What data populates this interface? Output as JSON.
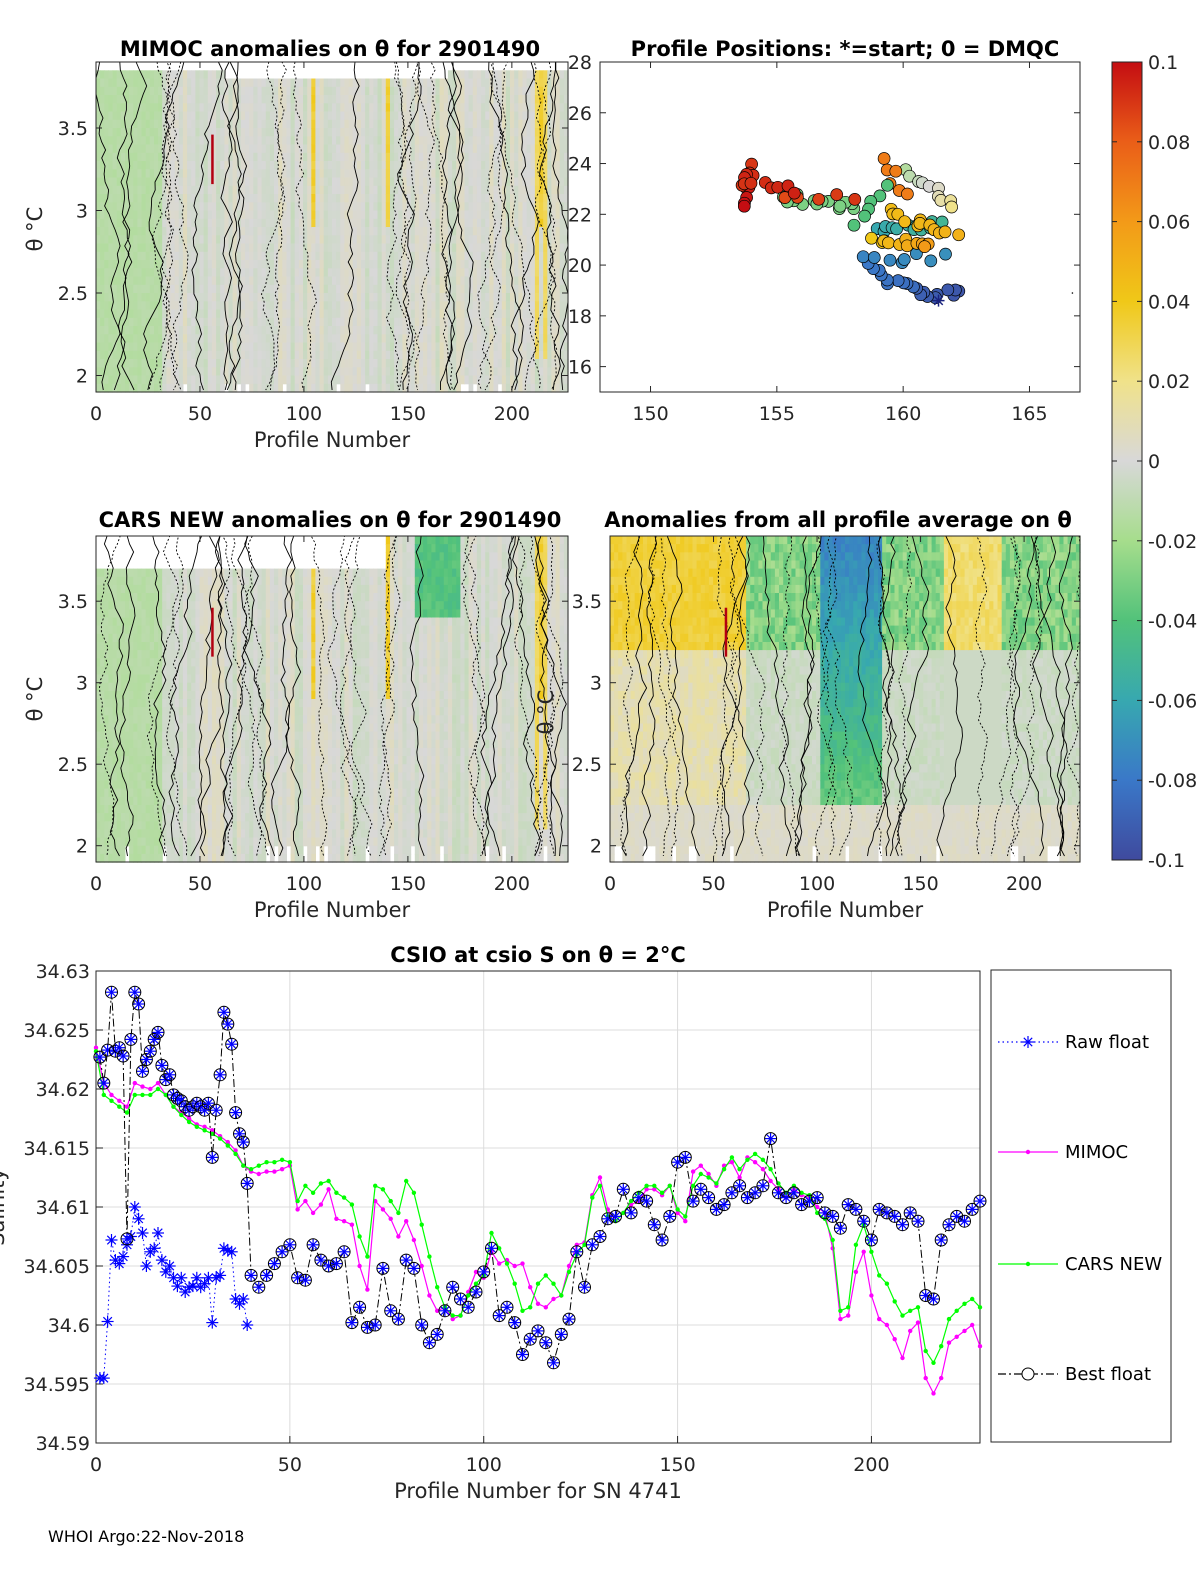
{
  "figure": {
    "footer": "WHOI Argo:22-Nov-2018"
  },
  "chart_data": [
    {
      "id": "mimoc",
      "type": "heatmap",
      "title": "MIMOC anomalies on θ  for 2901490",
      "xlabel": "Profile Number",
      "ylabel": "θ °C",
      "xlim": [
        0,
        227
      ],
      "ylim": [
        1.9,
        3.9
      ],
      "xticks": [
        0,
        50,
        100,
        150,
        200
      ],
      "yticks": [
        2,
        2.5,
        3,
        3.5
      ],
      "clim": [
        -0.1,
        0.1
      ],
      "contours": "black solid/dotted anomaly contours"
    },
    {
      "id": "positions",
      "type": "scatter",
      "title": "Profile Positions: *=start; 0 = DMQC",
      "xlim": [
        148,
        167
      ],
      "ylim": [
        15,
        28
      ],
      "xticks": [
        150,
        155,
        160,
        165
      ],
      "yticks": [
        16,
        18,
        20,
        22,
        24,
        26,
        28
      ],
      "start": [
        161.4,
        18.6
      ],
      "colormap_by": "mean anomaly"
    },
    {
      "id": "cars",
      "type": "heatmap",
      "title": "CARS NEW anomalies on θ for 2901490",
      "xlabel": "Profile Number",
      "ylabel": "θ °C",
      "xlim": [
        0,
        227
      ],
      "ylim": [
        1.9,
        3.9
      ],
      "xticks": [
        0,
        50,
        100,
        150,
        200
      ],
      "yticks": [
        2,
        2.5,
        3,
        3.5
      ],
      "clim": [
        -0.1,
        0.1
      ]
    },
    {
      "id": "allavg",
      "type": "heatmap",
      "title": "Anomalies from all profile average on θ",
      "xlabel": "Profile Number",
      "ylabel": "θ °C",
      "xlim": [
        0,
        227
      ],
      "ylim": [
        1.9,
        3.9
      ],
      "xticks": [
        0,
        50,
        100,
        150,
        200
      ],
      "yticks": [
        2,
        2.5,
        3,
        3.5
      ],
      "clim": [
        -0.1,
        0.1
      ]
    },
    {
      "id": "colorbar",
      "type": "colorbar",
      "range": [
        -0.1,
        0.1
      ],
      "ticks": [
        "0.1",
        "0.08",
        "0.06",
        "0.04",
        "0.02",
        "0",
        "-0.02",
        "-0.04",
        "-0.06",
        "-0.08",
        "-0.1"
      ],
      "colors": [
        "#3f4a9e",
        "#3a78c8",
        "#37a8b0",
        "#52c27a",
        "#a6dd8c",
        "#d8d8d8",
        "#f0e28a",
        "#f0c818",
        "#f39a18",
        "#ea5e18",
        "#c40d12"
      ]
    },
    {
      "id": "salinity",
      "type": "line",
      "title": "CSIO at csio S on θ = 2°C",
      "xlabel": "Profile Number for SN 4741",
      "ylabel": "Salinity",
      "xlim": [
        0,
        228
      ],
      "ylim": [
        34.59,
        34.63
      ],
      "xticks": [
        0,
        50,
        100,
        150,
        200
      ],
      "yticks": [
        "34.59",
        "34.595",
        "34.6",
        "34.605",
        "34.61",
        "34.615",
        "34.62",
        "34.625",
        "34.63"
      ],
      "legend_position": "outside-right",
      "series": [
        {
          "name": "Raw float",
          "color": "#0000ff",
          "style": "dotted",
          "marker": "asterisk",
          "x": [
            1,
            2,
            3,
            4,
            5,
            6,
            7,
            8,
            9,
            10,
            11,
            12,
            13,
            14,
            15,
            16,
            17,
            18,
            19,
            20,
            21,
            22,
            23,
            24,
            25,
            26,
            27,
            28,
            29,
            30,
            31,
            32,
            33,
            34,
            35,
            36,
            37,
            38,
            39
          ],
          "values": [
            34.5955,
            34.5955,
            34.6003,
            34.6072,
            34.6055,
            34.6052,
            34.6058,
            34.6068,
            34.6075,
            34.61,
            34.609,
            34.6078,
            34.605,
            34.6062,
            34.6065,
            34.6078,
            34.6055,
            34.6045,
            34.605,
            34.604,
            34.6033,
            34.604,
            34.6028,
            34.6032,
            34.6033,
            34.604,
            34.6032,
            34.6035,
            34.604,
            34.6002,
            34.604,
            34.6042,
            34.6065,
            34.6063,
            34.6062,
            34.6022,
            34.6018,
            34.6022,
            34.6
          ]
        },
        {
          "name": "MIMOC",
          "color": "#ff00ff",
          "style": "solid",
          "marker": "dot",
          "x": [
            0,
            2,
            4,
            6,
            8,
            10,
            12,
            14,
            16,
            18,
            20,
            22,
            24,
            26,
            28,
            30,
            32,
            34,
            36,
            38,
            40,
            42,
            44,
            46,
            48,
            50,
            52,
            54,
            56,
            58,
            60,
            62,
            64,
            66,
            68,
            70,
            72,
            74,
            76,
            78,
            80,
            82,
            84,
            86,
            88,
            90,
            92,
            94,
            96,
            98,
            100,
            102,
            104,
            106,
            108,
            110,
            112,
            114,
            116,
            118,
            120,
            122,
            124,
            126,
            128,
            130,
            132,
            134,
            136,
            138,
            140,
            142,
            144,
            146,
            148,
            150,
            152,
            154,
            156,
            158,
            160,
            162,
            164,
            166,
            168,
            170,
            172,
            174,
            176,
            178,
            180,
            182,
            184,
            186,
            188,
            190,
            192,
            194,
            196,
            198,
            200,
            202,
            204,
            206,
            208,
            210,
            212,
            214,
            216,
            218,
            220,
            222,
            224,
            226,
            228
          ],
          "values": [
            34.6235,
            34.6205,
            34.6195,
            34.619,
            34.6185,
            34.6205,
            34.6202,
            34.62,
            34.6205,
            34.6195,
            34.6185,
            34.618,
            34.6175,
            34.617,
            34.6168,
            34.6165,
            34.616,
            34.6155,
            34.6148,
            34.6135,
            34.613,
            34.6128,
            34.613,
            34.613,
            34.6132,
            34.6135,
            34.6098,
            34.6105,
            34.6095,
            34.6102,
            34.6115,
            34.609,
            34.6088,
            34.6085,
            34.605,
            34.603,
            34.6105,
            34.6098,
            34.609,
            34.6075,
            34.6088,
            34.6072,
            34.605,
            34.6025,
            34.6012,
            34.6015,
            34.6005,
            34.6008,
            34.6028,
            34.6045,
            34.604,
            34.6062,
            34.6052,
            34.6055,
            34.605,
            34.6052,
            34.6032,
            34.6018,
            34.6015,
            34.6022,
            34.6025,
            34.605,
            34.6068,
            34.607,
            34.611,
            34.6125,
            34.6098,
            34.6088,
            34.6095,
            34.6102,
            34.6105,
            34.6115,
            34.6115,
            34.611,
            34.6118,
            34.6095,
            34.6088,
            34.613,
            34.6135,
            34.6128,
            34.6118,
            34.6135,
            34.6138,
            34.6125,
            34.6142,
            34.6138,
            34.6132,
            34.6122,
            34.6115,
            34.6108,
            34.6115,
            34.611,
            34.6108,
            34.61,
            34.6095,
            34.6065,
            34.6005,
            34.6008,
            34.6045,
            34.6062,
            34.6025,
            34.6005,
            34.6,
            34.5988,
            34.5972,
            34.5995,
            34.6002,
            34.5955,
            34.5942,
            34.5955,
            34.5985,
            34.599,
            34.5995,
            34.6,
            34.5982
          ]
        },
        {
          "name": "CARS NEW",
          "color": "#00ff00",
          "style": "solid",
          "marker": "dot",
          "x": [
            0,
            2,
            4,
            6,
            8,
            10,
            12,
            14,
            16,
            18,
            20,
            22,
            24,
            26,
            28,
            30,
            32,
            34,
            36,
            38,
            40,
            42,
            44,
            46,
            48,
            50,
            52,
            54,
            56,
            58,
            60,
            62,
            64,
            66,
            68,
            70,
            72,
            74,
            76,
            78,
            80,
            82,
            84,
            86,
            88,
            90,
            92,
            94,
            96,
            98,
            100,
            102,
            104,
            106,
            108,
            110,
            112,
            114,
            116,
            118,
            120,
            122,
            124,
            126,
            128,
            130,
            132,
            134,
            136,
            138,
            140,
            142,
            144,
            146,
            148,
            150,
            152,
            154,
            156,
            158,
            160,
            162,
            164,
            166,
            168,
            170,
            172,
            174,
            176,
            178,
            180,
            182,
            184,
            186,
            188,
            190,
            192,
            194,
            196,
            198,
            200,
            202,
            204,
            206,
            208,
            210,
            212,
            214,
            216,
            218,
            220,
            222,
            224,
            226,
            228
          ],
          "values": [
            34.6232,
            34.6195,
            34.619,
            34.6185,
            34.618,
            34.6195,
            34.6195,
            34.6195,
            34.62,
            34.6195,
            34.6185,
            34.6178,
            34.6172,
            34.6168,
            34.6165,
            34.6162,
            34.6158,
            34.6152,
            34.6145,
            34.6135,
            34.6132,
            34.6135,
            34.6138,
            34.6138,
            34.614,
            34.6138,
            34.6105,
            34.6118,
            34.6112,
            34.612,
            34.6122,
            34.6112,
            34.6108,
            34.6102,
            34.6075,
            34.6058,
            34.6118,
            34.6115,
            34.6105,
            34.6095,
            34.6122,
            34.6112,
            34.6085,
            34.6058,
            34.6032,
            34.6015,
            34.6008,
            34.6008,
            34.6025,
            34.6035,
            34.6042,
            34.6078,
            34.6065,
            34.6052,
            34.6035,
            34.6012,
            34.6015,
            34.6035,
            34.6042,
            34.6035,
            34.6025,
            34.6045,
            34.606,
            34.6068,
            34.6108,
            34.6118,
            34.6092,
            34.6088,
            34.6095,
            34.6105,
            34.6112,
            34.6118,
            34.6118,
            34.6112,
            34.6118,
            34.6098,
            34.6092,
            34.6118,
            34.6128,
            34.6125,
            34.612,
            34.6132,
            34.6142,
            34.6132,
            34.614,
            34.6145,
            34.614,
            34.6132,
            34.612,
            34.6112,
            34.6118,
            34.6112,
            34.611,
            34.6095,
            34.609,
            34.6072,
            34.6012,
            34.6015,
            34.6068,
            34.6085,
            34.6062,
            34.6042,
            34.6035,
            34.602,
            34.6008,
            34.6012,
            34.6015,
            34.5978,
            34.5968,
            34.5982,
            34.6005,
            34.6012,
            34.6018,
            34.6022,
            34.6015
          ]
        },
        {
          "name": "Best float",
          "color": "#000000",
          "style": "dash-dot",
          "marker": "circle",
          "x": [
            1,
            2,
            3,
            4,
            5,
            6,
            7,
            8,
            9,
            10,
            11,
            12,
            13,
            14,
            15,
            16,
            17,
            18,
            19,
            20,
            21,
            22,
            23,
            24,
            25,
            26,
            27,
            28,
            29,
            30,
            31,
            32,
            33,
            34,
            35,
            36,
            37,
            38,
            39,
            40,
            42,
            44,
            46,
            48,
            50,
            52,
            54,
            56,
            58,
            60,
            62,
            64,
            66,
            68,
            70,
            72,
            74,
            76,
            78,
            80,
            82,
            84,
            86,
            88,
            90,
            92,
            94,
            96,
            98,
            100,
            102,
            104,
            106,
            108,
            110,
            112,
            114,
            116,
            118,
            120,
            122,
            124,
            126,
            128,
            130,
            132,
            134,
            136,
            138,
            140,
            142,
            144,
            146,
            148,
            150,
            152,
            154,
            156,
            158,
            160,
            162,
            164,
            166,
            168,
            170,
            172,
            174,
            176,
            178,
            180,
            182,
            184,
            186,
            188,
            190,
            192,
            194,
            196,
            198,
            200,
            202,
            204,
            206,
            208,
            210,
            212,
            214,
            216,
            218,
            220,
            222,
            224,
            226,
            228
          ],
          "values": [
            34.6227,
            34.6205,
            34.6233,
            34.6282,
            34.6232,
            34.6235,
            34.6228,
            34.6073,
            34.6242,
            34.6282,
            34.6272,
            34.6215,
            34.6225,
            34.6232,
            34.6242,
            34.6248,
            34.622,
            34.6208,
            34.6212,
            34.6195,
            34.6192,
            34.619,
            34.6185,
            34.6182,
            34.6185,
            34.6188,
            34.6185,
            34.6182,
            34.6188,
            34.6142,
            34.6182,
            34.6212,
            34.6265,
            34.6255,
            34.6238,
            34.618,
            34.6162,
            34.6155,
            34.612,
            34.6042,
            34.6032,
            34.6042,
            34.6052,
            34.6062,
            34.6068,
            34.604,
            34.6038,
            34.6068,
            34.6055,
            34.605,
            34.6052,
            34.6062,
            34.6002,
            34.6015,
            34.5998,
            34.6,
            34.6048,
            34.6012,
            34.6005,
            34.6055,
            34.6048,
            34.6,
            34.5985,
            34.5992,
            34.6012,
            34.6032,
            34.6022,
            34.6015,
            34.6028,
            34.6045,
            34.6065,
            34.6008,
            34.6015,
            34.6002,
            34.5975,
            34.5988,
            34.5995,
            34.5985,
            34.5968,
            34.5992,
            34.6005,
            34.6062,
            34.6032,
            34.6068,
            34.6075,
            34.609,
            34.6092,
            34.6115,
            34.6095,
            34.6108,
            34.6105,
            34.6085,
            34.6072,
            34.6092,
            34.6138,
            34.6142,
            34.6105,
            34.6115,
            34.6108,
            34.6098,
            34.6102,
            34.6112,
            34.6118,
            34.6108,
            34.6112,
            34.6118,
            34.6158,
            34.6112,
            34.6108,
            34.6112,
            34.6102,
            34.6105,
            34.6108,
            34.6095,
            34.6092,
            34.6082,
            34.6102,
            34.6098,
            34.6088,
            34.6072,
            34.6098,
            34.6095,
            34.6092,
            34.6085,
            34.6095,
            34.6088,
            34.6025,
            34.6022,
            34.6072,
            34.6085,
            34.6092,
            34.6088,
            34.6098,
            34.6105
          ]
        }
      ]
    }
  ]
}
